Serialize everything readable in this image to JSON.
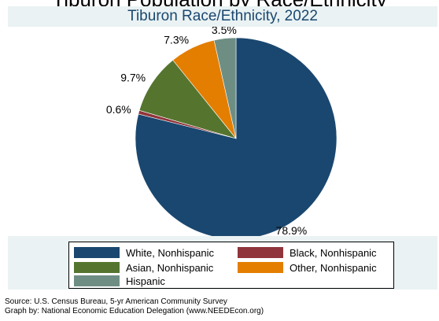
{
  "header": {
    "cut_text": "Tiburon Population by Race/Ethnicity"
  },
  "chart_data": {
    "type": "pie",
    "title": "Tiburon Race/Ethnicity, 2022",
    "slices": [
      {
        "label": "White, Nonhispanic",
        "value": 78.9,
        "label_text": "78.9%",
        "color": "#1a476f"
      },
      {
        "label": "Black, Nonhispanic",
        "value": 0.6,
        "label_text": "0.6%",
        "color": "#90353b"
      },
      {
        "label": "Asian, Nonhispanic",
        "value": 9.7,
        "label_text": "9.7%",
        "color": "#55752f"
      },
      {
        "label": "Other, Nonhispanic",
        "value": 7.3,
        "label_text": "7.3%",
        "color": "#e37e00"
      },
      {
        "label": "Hispanic",
        "value": 3.5,
        "label_text": "3.5%",
        "color": "#6e8e84"
      }
    ],
    "legend_position": "bottom"
  },
  "footer": {
    "source": "Source:  U.S. Census Bureau, 5-yr American Community Survey",
    "credit": "Graph by: National Economic Education Delegation (www.NEEDEcon.org)"
  }
}
